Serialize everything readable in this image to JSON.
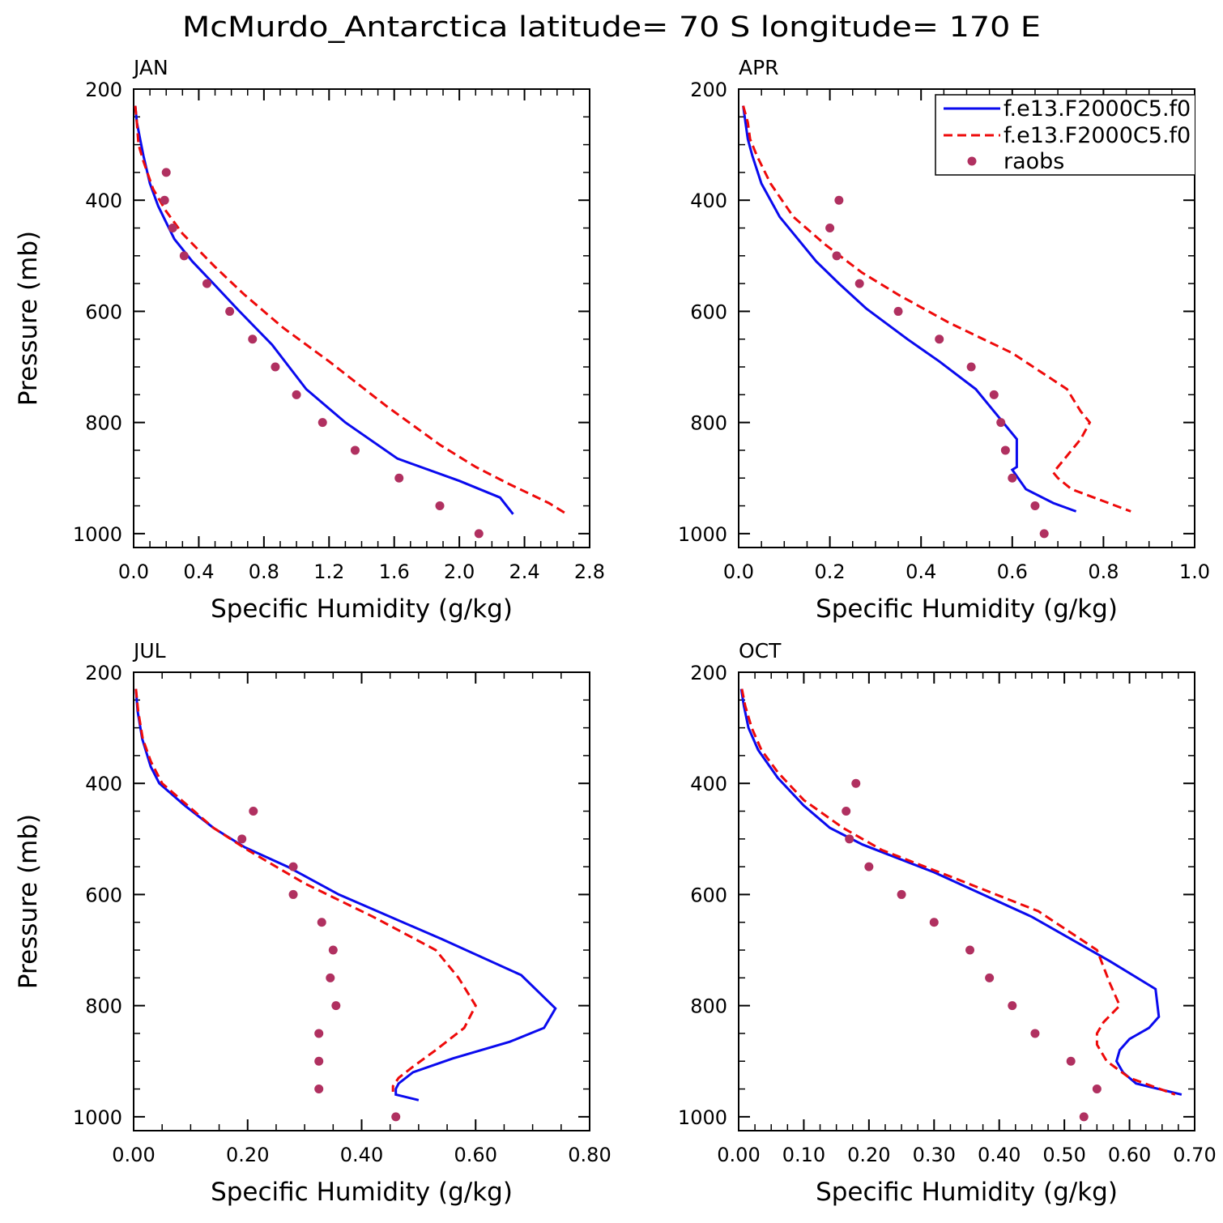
{
  "title": "McMurdo_Antarctica  latitude= 70 S longitude= 170 E",
  "colors": {
    "series1": "#0a0aee",
    "series2": "#ee0a0a",
    "raobs": "#b03060"
  },
  "legend": {
    "placement": "top-right of APR panel",
    "entries": [
      "f.e13.F2000C5.f0",
      "f.e13.F2000C5.f0",
      "raobs"
    ]
  },
  "chart_data": [
    {
      "type": "line",
      "panel": "JAN",
      "xlabel": "Specific Humidity (g/kg)",
      "ylabel": "Pressure (mb)",
      "xlim": [
        0,
        2.8
      ],
      "ylim": [
        200,
        1025
      ],
      "y_inverted": true,
      "xticks": [
        0,
        0.4,
        0.8,
        1.2,
        1.6,
        2.0,
        2.4,
        2.8
      ],
      "xtick_labels": [
        "0.0",
        "0.4",
        "0.8",
        "1.2",
        "1.6",
        "2.0",
        "2.4",
        "2.8"
      ],
      "yticks": [
        200,
        400,
        600,
        800,
        1000
      ],
      "ytick_labels": [
        "200",
        "400",
        "600",
        "800",
        "1000"
      ],
      "series": [
        {
          "style": "solid",
          "x": [
            0.01,
            0.02,
            0.04,
            0.06,
            0.1,
            0.15,
            0.2,
            0.25,
            0.36,
            0.49,
            0.65,
            0.85,
            1.06,
            1.3,
            1.62,
            2.0,
            2.25,
            2.33
          ],
          "y": [
            230,
            260,
            290,
            320,
            370,
            410,
            440,
            470,
            510,
            550,
            600,
            660,
            740,
            800,
            865,
            905,
            935,
            965
          ]
        },
        {
          "style": "dashed",
          "x": [
            0.01,
            0.02,
            0.03,
            0.06,
            0.12,
            0.2,
            0.3,
            0.4,
            0.5,
            0.68,
            0.92,
            1.2,
            1.55,
            1.88,
            2.1,
            2.3,
            2.55,
            2.66
          ],
          "y": [
            230,
            260,
            300,
            330,
            380,
            420,
            460,
            490,
            520,
            570,
            630,
            690,
            770,
            840,
            880,
            910,
            945,
            965
          ]
        }
      ],
      "raobs": {
        "x": [
          0.2,
          0.19,
          0.24,
          0.31,
          0.45,
          0.59,
          0.73,
          0.87,
          1.0,
          1.16,
          1.36,
          1.63,
          1.88,
          2.12
        ],
        "y": [
          350,
          400,
          450,
          500,
          550,
          600,
          650,
          700,
          750,
          800,
          850,
          900,
          950,
          1000
        ]
      }
    },
    {
      "type": "line",
      "panel": "APR",
      "xlabel": "Specific Humidity (g/kg)",
      "ylabel": "",
      "xlim": [
        0,
        1.0
      ],
      "ylim": [
        200,
        1025
      ],
      "y_inverted": true,
      "xticks": [
        0,
        0.2,
        0.4,
        0.6,
        0.8,
        1.0
      ],
      "xtick_labels": [
        "0.0",
        "0.2",
        "0.4",
        "0.6",
        "0.8",
        "1.0"
      ],
      "yticks": [
        200,
        400,
        600,
        800,
        1000
      ],
      "ytick_labels": [
        "200",
        "400",
        "600",
        "800",
        "1000"
      ],
      "series": [
        {
          "style": "solid",
          "x": [
            0.01,
            0.015,
            0.02,
            0.03,
            0.05,
            0.09,
            0.13,
            0.17,
            0.22,
            0.28,
            0.37,
            0.44,
            0.52,
            0.56,
            0.61,
            0.61,
            0.6,
            0.63,
            0.69,
            0.74
          ],
          "y": [
            230,
            260,
            290,
            320,
            370,
            430,
            470,
            510,
            550,
            595,
            650,
            690,
            740,
            780,
            830,
            880,
            885,
            920,
            945,
            960
          ]
        },
        {
          "style": "dashed",
          "x": [
            0.01,
            0.02,
            0.025,
            0.04,
            0.07,
            0.12,
            0.19,
            0.27,
            0.35,
            0.46,
            0.6,
            0.72,
            0.75,
            0.77,
            0.75,
            0.72,
            0.69,
            0.7,
            0.73,
            0.86
          ],
          "y": [
            230,
            260,
            290,
            320,
            370,
            430,
            480,
            530,
            570,
            620,
            675,
            740,
            780,
            800,
            830,
            860,
            890,
            900,
            920,
            960
          ]
        }
      ],
      "raobs": {
        "x": [
          0.22,
          0.2,
          0.215,
          0.265,
          0.35,
          0.44,
          0.51,
          0.56,
          0.575,
          0.585,
          0.6,
          0.65,
          0.67
        ],
        "y": [
          400,
          450,
          500,
          550,
          600,
          650,
          700,
          750,
          800,
          850,
          900,
          950,
          1000
        ]
      }
    },
    {
      "type": "line",
      "panel": "JUL",
      "xlabel": "Specific Humidity (g/kg)",
      "ylabel": "Pressure (mb)",
      "xlim": [
        0,
        0.8
      ],
      "ylim": [
        200,
        1025
      ],
      "y_inverted": true,
      "xticks": [
        0,
        0.2,
        0.4,
        0.6,
        0.8
      ],
      "xtick_labels": [
        "0.00",
        "0.20",
        "0.40",
        "0.60",
        "0.80"
      ],
      "yticks": [
        200,
        400,
        600,
        800,
        1000
      ],
      "ytick_labels": [
        "200",
        "400",
        "600",
        "800",
        "1000"
      ],
      "series": [
        {
          "style": "solid",
          "x": [
            0.004,
            0.007,
            0.015,
            0.03,
            0.045,
            0.09,
            0.14,
            0.195,
            0.27,
            0.36,
            0.54,
            0.68,
            0.74,
            0.72,
            0.66,
            0.56,
            0.49,
            0.465,
            0.46,
            0.46,
            0.5
          ],
          "y": [
            230,
            270,
            320,
            370,
            400,
            440,
            480,
            515,
            550,
            600,
            680,
            745,
            805,
            840,
            865,
            895,
            920,
            940,
            950,
            960,
            970
          ]
        },
        {
          "style": "dashed",
          "x": [
            0.004,
            0.008,
            0.016,
            0.03,
            0.05,
            0.095,
            0.14,
            0.2,
            0.3,
            0.42,
            0.53,
            0.57,
            0.6,
            0.58,
            0.53,
            0.49,
            0.465,
            0.455,
            0.455
          ],
          "y": [
            230,
            270,
            320,
            360,
            400,
            440,
            480,
            520,
            580,
            640,
            700,
            750,
            800,
            840,
            880,
            910,
            930,
            945,
            955
          ]
        }
      ],
      "raobs": {
        "x": [
          0.21,
          0.19,
          0.28,
          0.28,
          0.33,
          0.35,
          0.345,
          0.355,
          0.325,
          0.325,
          0.325,
          0.46
        ],
        "y": [
          450,
          500,
          550,
          600,
          650,
          700,
          750,
          800,
          850,
          900,
          950,
          1000
        ]
      }
    },
    {
      "type": "line",
      "panel": "OCT",
      "xlabel": "Specific Humidity (g/kg)",
      "ylabel": "",
      "xlim": [
        0,
        0.7
      ],
      "ylim": [
        200,
        1025
      ],
      "y_inverted": true,
      "xticks": [
        0,
        0.1,
        0.2,
        0.3,
        0.4,
        0.5,
        0.6,
        0.7
      ],
      "xtick_labels": [
        "0.00",
        "0.10",
        "0.20",
        "0.30",
        "0.40",
        "0.50",
        "0.60",
        "0.70"
      ],
      "yticks": [
        200,
        400,
        600,
        800,
        1000
      ],
      "ytick_labels": [
        "200",
        "400",
        "600",
        "800",
        "1000"
      ],
      "series": [
        {
          "style": "solid",
          "x": [
            0.004,
            0.008,
            0.015,
            0.03,
            0.06,
            0.1,
            0.14,
            0.19,
            0.3,
            0.45,
            0.57,
            0.64,
            0.645,
            0.63,
            0.6,
            0.585,
            0.58,
            0.59,
            0.61,
            0.68
          ],
          "y": [
            230,
            260,
            300,
            340,
            390,
            440,
            480,
            510,
            560,
            640,
            720,
            770,
            820,
            840,
            860,
            880,
            900,
            920,
            940,
            960
          ]
        },
        {
          "style": "dashed",
          "x": [
            0.005,
            0.01,
            0.02,
            0.035,
            0.06,
            0.1,
            0.16,
            0.22,
            0.33,
            0.46,
            0.55,
            0.57,
            0.585,
            0.56,
            0.55,
            0.55,
            0.565,
            0.6,
            0.67
          ],
          "y": [
            230,
            260,
            300,
            340,
            380,
            430,
            480,
            520,
            570,
            630,
            700,
            760,
            800,
            830,
            850,
            870,
            900,
            930,
            960
          ]
        }
      ],
      "raobs": {
        "x": [
          0.18,
          0.165,
          0.17,
          0.2,
          0.25,
          0.3,
          0.355,
          0.385,
          0.42,
          0.455,
          0.51,
          0.55,
          0.53
        ],
        "y": [
          400,
          450,
          500,
          550,
          600,
          650,
          700,
          750,
          800,
          850,
          900,
          950,
          1000
        ]
      }
    }
  ]
}
